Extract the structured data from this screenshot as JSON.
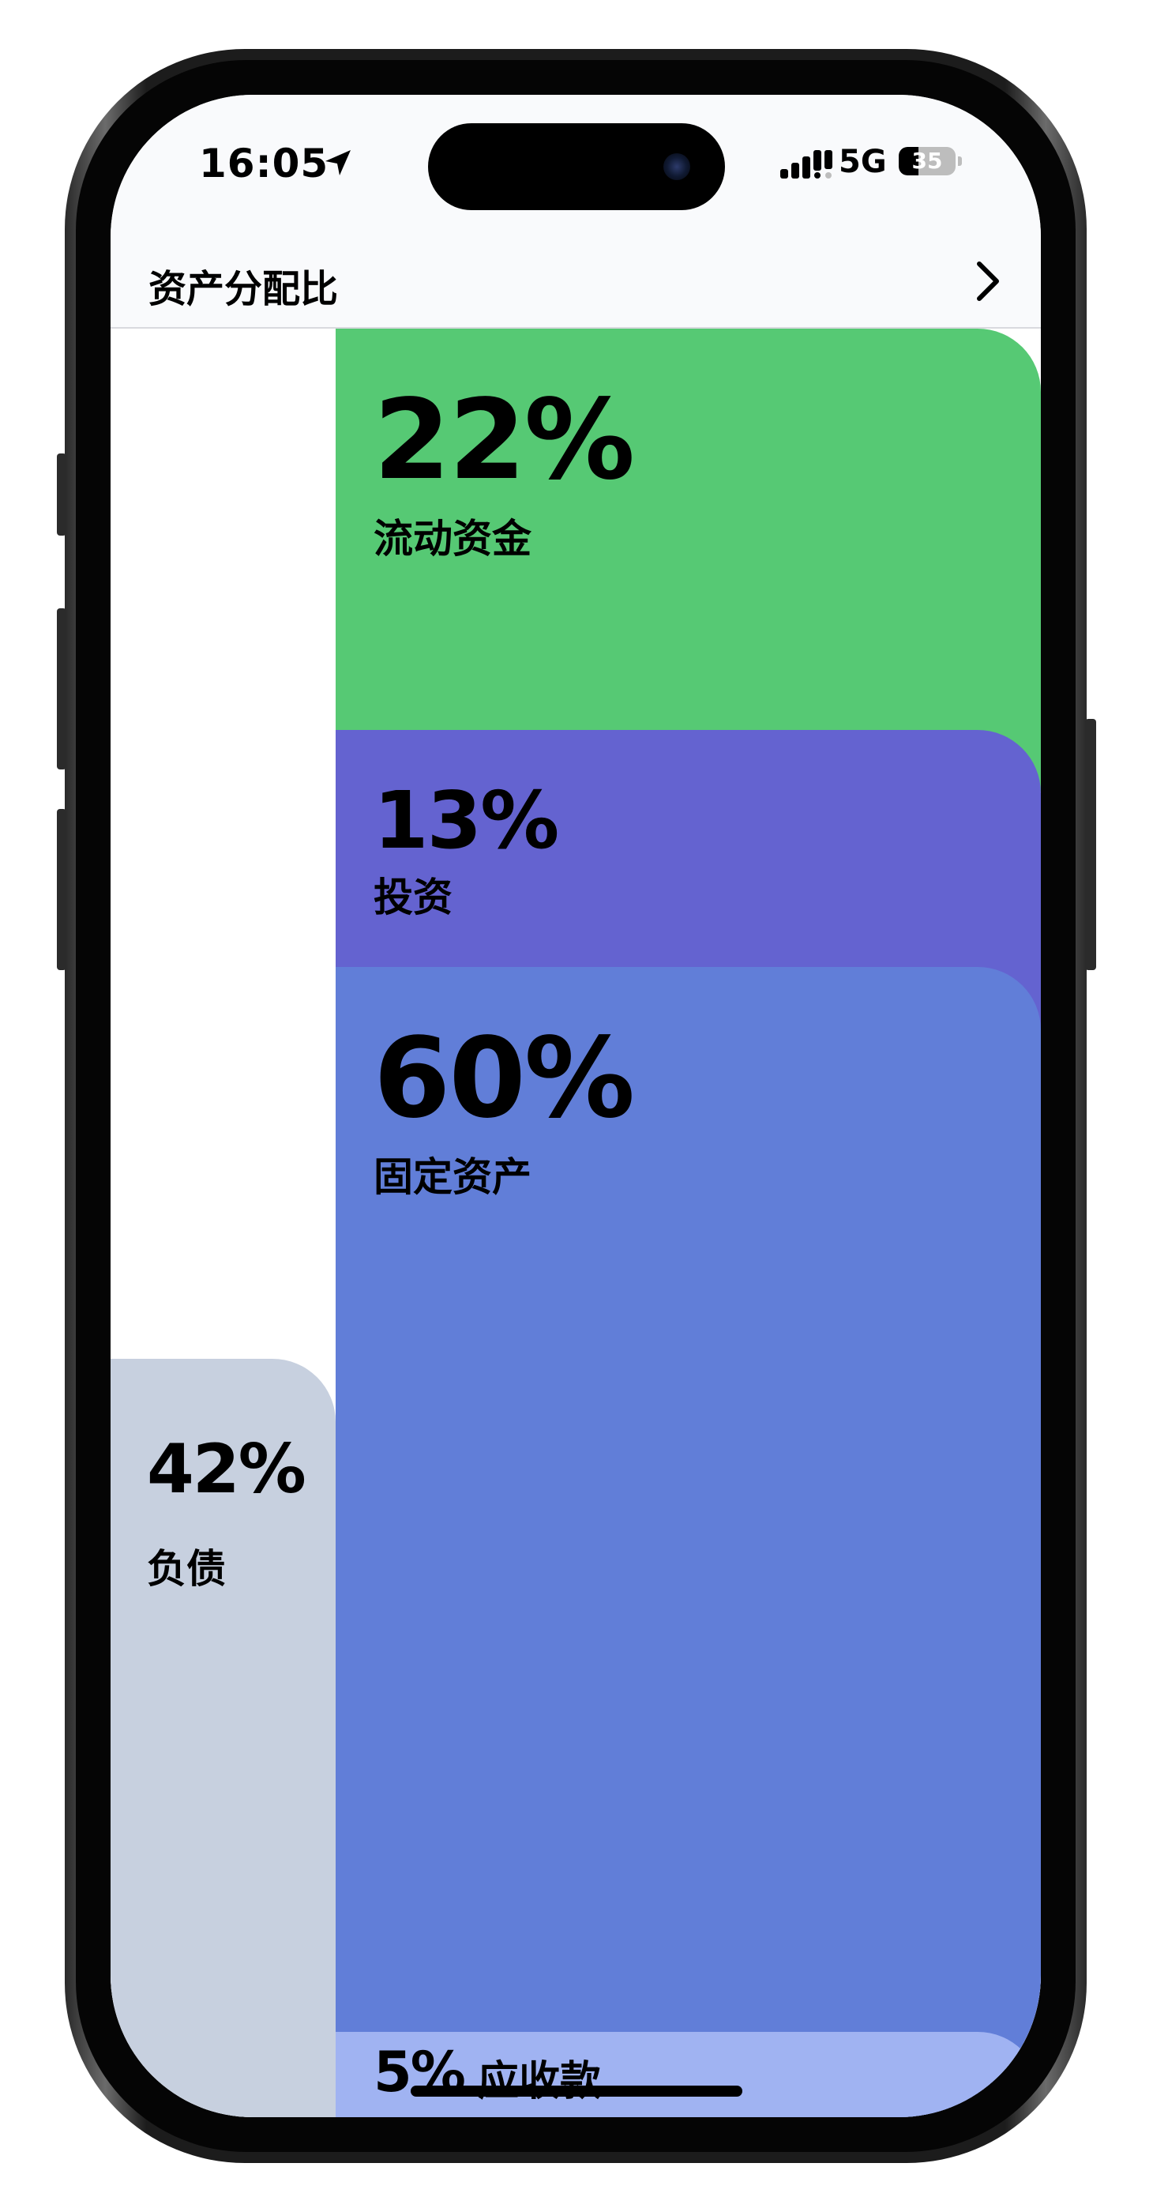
{
  "status_bar": {
    "time": "16:05",
    "network": "5G",
    "battery": "35",
    "battery_level": 0.35
  },
  "header": {
    "title": "资产分配比"
  },
  "allocation": [
    {
      "percent": "22%",
      "label": "流动资金",
      "color": "#56c974"
    },
    {
      "percent": "13%",
      "label": "投资",
      "color": "#6463d0"
    },
    {
      "percent": "60%",
      "label": "固定资产",
      "color": "#617ed8"
    },
    {
      "percent": "5%",
      "label": "应收款",
      "color": "#a0b3f2"
    }
  ],
  "liabilities": {
    "percent": "42%",
    "label": "负债",
    "color": "#c7d0df"
  }
}
